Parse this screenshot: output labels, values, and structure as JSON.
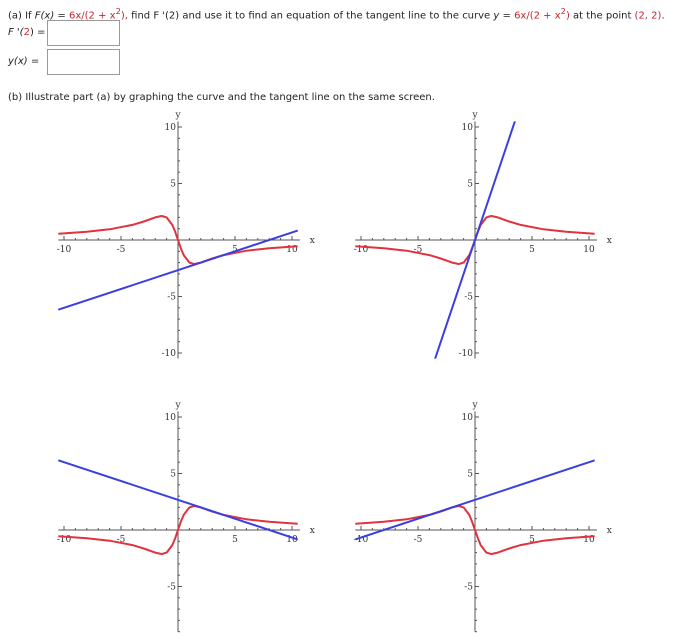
{
  "part_a": {
    "prefix": "(a) If ",
    "fx": "F(x)",
    "eq1": " = ",
    "expr1": "6x/(2 + x",
    "sup": "2",
    "close1": "),",
    "mid": " find F '(2) and use it to find an equation of the tangent line to the curve ",
    "y": "y",
    "eq2": " = ",
    "expr2": "6x/(2 + x",
    "close2": ")",
    "tail": " at the point ",
    "point": "(2, 2)",
    "end": "."
  },
  "answers": {
    "fprime_label_pre": "F '(",
    "fprime_num": "2",
    "fprime_label_post": ") =",
    "fprime_value": "",
    "yx_label": "y(x)   =",
    "yx_value": ""
  },
  "part_b": {
    "text": "(b) Illustrate part (a) by graphing the curve and the tangent line on the same screen."
  },
  "colors": {
    "curve": "#e0333d",
    "tangent": "#3b3fe0",
    "highlight": "#c0272d"
  },
  "chart_data": [
    {
      "type": "line",
      "xlabel": "x",
      "ylabel": "y",
      "xlim": [
        -10.5,
        10.5
      ],
      "ylim": [
        -10.5,
        10.5
      ],
      "xticks": [
        "-10",
        "-5",
        "5",
        "10"
      ],
      "yticks": [
        "10",
        "5",
        "-5",
        "-10"
      ],
      "grid": false,
      "series": [
        {
          "x": [
            -10.5,
            -10,
            -8,
            -6,
            -4,
            -3,
            -2,
            -1.5,
            -1.41,
            -1,
            -0.5,
            -0.25,
            0,
            0.25,
            0.5,
            1,
            1.41,
            1.5,
            2,
            3,
            4,
            6,
            8,
            10,
            10.5
          ],
          "y": [
            0.561,
            0.588,
            0.727,
            0.947,
            1.333,
            1.636,
            2,
            2.118,
            2.121,
            2,
            1.333,
            0.727,
            0,
            -0.727,
            -1.333,
            -2,
            -2.121,
            -2.118,
            -2,
            -1.636,
            -1.333,
            -0.947,
            -0.727,
            -0.588,
            -0.561
          ],
          "color": "#e0333d"
        },
        {
          "x": [
            -10.5,
            10.5
          ],
          "y": [
            -6.167,
            0.833
          ],
          "color": "#3b3fe0"
        }
      ]
    },
    {
      "type": "line",
      "xlabel": "x",
      "ylabel": "y",
      "xlim": [
        -10.5,
        10.5
      ],
      "ylim": [
        -10.5,
        10.5
      ],
      "xticks": [
        "-10",
        "-5",
        "5",
        "10"
      ],
      "yticks": [
        "10",
        "5",
        "-5",
        "-10"
      ],
      "grid": false,
      "series": [
        {
          "x": [
            -10.5,
            -10,
            -8,
            -6,
            -4,
            -3,
            -2,
            -1.5,
            -1.41,
            -1,
            -0.5,
            -0.25,
            0,
            0.25,
            0.5,
            1,
            1.41,
            1.5,
            2,
            3,
            4,
            6,
            8,
            10,
            10.5
          ],
          "y": [
            -0.561,
            -0.588,
            -0.727,
            -0.947,
            -1.333,
            -1.636,
            -2,
            -2.118,
            -2.121,
            -2,
            -1.333,
            -0.727,
            0,
            0.727,
            1.333,
            2,
            2.121,
            2.118,
            2,
            1.636,
            1.333,
            0.947,
            0.727,
            0.588,
            0.561
          ],
          "color": "#e0333d"
        },
        {
          "x": [
            -3.6,
            3.6
          ],
          "y": [
            -10.8,
            10.8
          ],
          "color": "#3b3fe0"
        }
      ]
    },
    {
      "type": "line",
      "xlabel": "x",
      "ylabel": "y",
      "xlim": [
        -10.5,
        10.5
      ],
      "ylim": [
        -9,
        10.5
      ],
      "xticks": [
        "-10",
        "-5",
        "5",
        "10"
      ],
      "yticks": [
        "10",
        "5",
        "-5"
      ],
      "grid": false,
      "series": [
        {
          "x": [
            -10.5,
            -10,
            -8,
            -6,
            -4,
            -3,
            -2,
            -1.5,
            -1.41,
            -1,
            -0.5,
            -0.25,
            0,
            0.25,
            0.5,
            1,
            1.41,
            1.5,
            2,
            3,
            4,
            6,
            8,
            10,
            10.5
          ],
          "y": [
            -0.561,
            -0.588,
            -0.727,
            -0.947,
            -1.333,
            -1.636,
            -2,
            -2.118,
            -2.121,
            -2,
            -1.333,
            -0.727,
            0,
            0.727,
            1.333,
            2,
            2.121,
            2.118,
            2,
            1.636,
            1.333,
            0.947,
            0.727,
            0.588,
            0.561
          ],
          "color": "#e0333d"
        },
        {
          "x": [
            -10.5,
            10.5
          ],
          "y": [
            6.167,
            -0.833
          ],
          "color": "#3b3fe0"
        }
      ]
    },
    {
      "type": "line",
      "xlabel": "x",
      "ylabel": "y",
      "xlim": [
        -10.5,
        10.5
      ],
      "ylim": [
        -9,
        10.5
      ],
      "xticks": [
        "-10",
        "-5",
        "5",
        "10"
      ],
      "yticks": [
        "10",
        "5",
        "-5"
      ],
      "grid": false,
      "series": [
        {
          "x": [
            -10.5,
            -10,
            -8,
            -6,
            -4,
            -3,
            -2,
            -1.5,
            -1.41,
            -1,
            -0.5,
            -0.25,
            0,
            0.25,
            0.5,
            1,
            1.41,
            1.5,
            2,
            3,
            4,
            6,
            8,
            10,
            10.5
          ],
          "y": [
            0.561,
            0.588,
            0.727,
            0.947,
            1.333,
            1.636,
            2,
            2.118,
            2.121,
            2,
            1.333,
            0.727,
            0,
            -0.727,
            -1.333,
            -2,
            -2.121,
            -2.118,
            -2,
            -1.636,
            -1.333,
            -0.947,
            -0.727,
            -0.588,
            -0.561
          ],
          "color": "#e0333d"
        },
        {
          "x": [
            -10.5,
            10.5
          ],
          "y": [
            -0.833,
            6.167
          ],
          "color": "#3b3fe0"
        }
      ]
    }
  ]
}
